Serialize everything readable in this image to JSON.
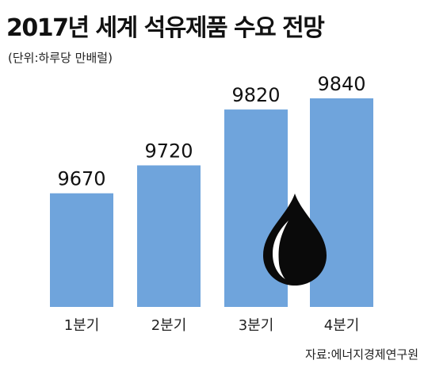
{
  "chart_data": {
    "type": "bar",
    "title": "2017년 세계 석유제품 수요 전망",
    "subtitle": "(단위:하루당 만배럴)",
    "categories": [
      "1분기",
      "2분기",
      "3분기",
      "4분기"
    ],
    "values": [
      9670,
      9720,
      9820,
      9840
    ],
    "value_labels": [
      "9670",
      "9720",
      "9820",
      "9840"
    ],
    "source": "자료:에너지경제연구원",
    "bar_color": "#6fa4dc",
    "decoration": "oil-drop-icon",
    "grid": false,
    "legend": "none"
  }
}
